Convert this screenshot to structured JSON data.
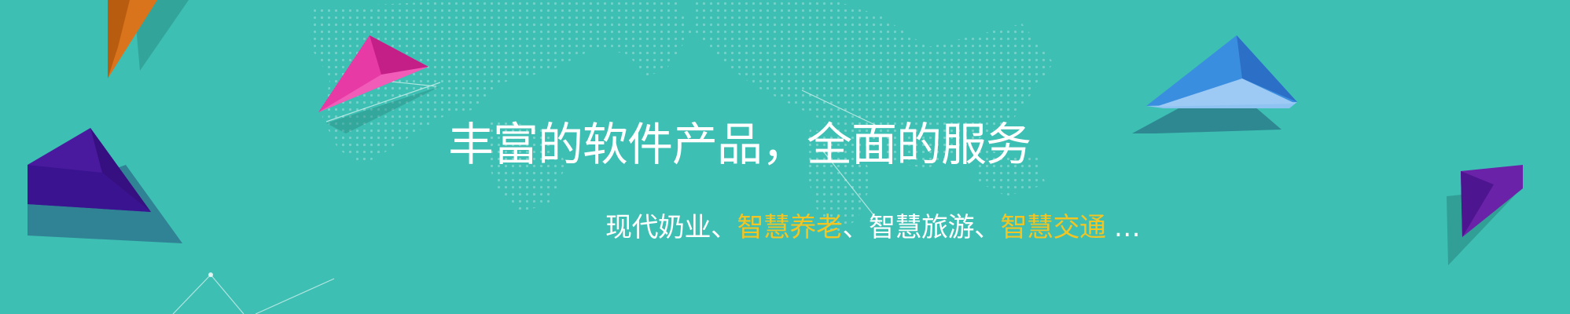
{
  "banner": {
    "headline": "丰富的软件产品，全面的服务",
    "subline": [
      {
        "text": "现代奶业、",
        "highlight": false
      },
      {
        "text": "智慧养老",
        "highlight": true
      },
      {
        "text": "、智慧旅游、",
        "highlight": false
      },
      {
        "text": "智慧交通",
        "highlight": true
      },
      {
        "text": " …",
        "highlight": false
      }
    ]
  },
  "colors": {
    "background": "#3dbfb3",
    "text": "#ffffff",
    "highlight": "#f2c522",
    "plane_pink": "#e83aa5",
    "plane_orange": "#d9741c",
    "plane_purple": "#4a1a9e",
    "plane_blue": "#3a8ee0",
    "plane_violet": "#6a22a8"
  }
}
